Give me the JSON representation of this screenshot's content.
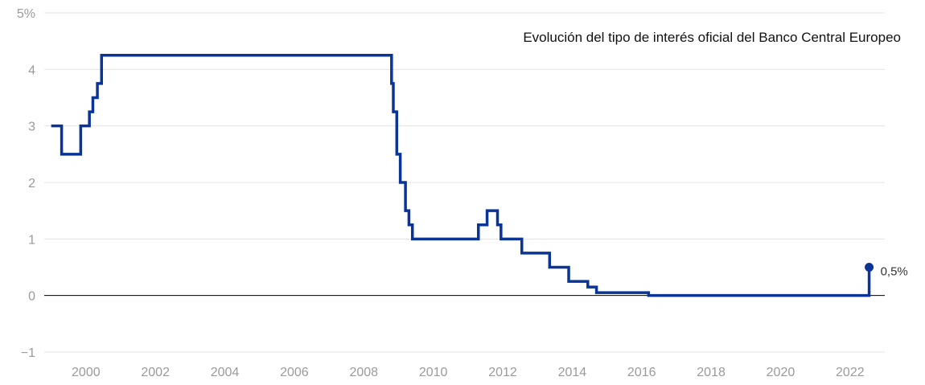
{
  "chart_data": {
    "type": "line",
    "title": "Evolución del tipo de interés oficial del Banco Central Europeo",
    "xlabel": "",
    "ylabel": "",
    "xlim": [
      1998.8,
      2023.0
    ],
    "ylim": [
      -1,
      5
    ],
    "x_ticks": [
      2000,
      2002,
      2004,
      2006,
      2008,
      2010,
      2012,
      2014,
      2016,
      2018,
      2020,
      2022
    ],
    "x_tick_labels": [
      "2000",
      "2002",
      "2004",
      "2006",
      "2008",
      "2010",
      "2012",
      "2014",
      "2016",
      "2018",
      "2020",
      "2022"
    ],
    "y_ticks": [
      -1,
      0,
      1,
      2,
      3,
      4,
      5
    ],
    "y_tick_labels": [
      "−1",
      "0",
      "1",
      "2",
      "3",
      "4",
      "5%"
    ],
    "grid": true,
    "series": [
      {
        "color": "#0a3596",
        "x": [
          1999.0,
          1999.3,
          1999.85,
          2000.1,
          2000.2,
          2000.33,
          2000.45,
          2008.8,
          2008.85,
          2008.95,
          2009.05,
          2009.2,
          2009.3,
          2009.4,
          2011.3,
          2011.55,
          2011.85,
          2011.95,
          2012.55,
          2013.35,
          2013.9,
          2014.45,
          2014.7,
          2016.2,
          2022.55
        ],
        "y": [
          3.0,
          2.5,
          3.0,
          3.25,
          3.5,
          3.75,
          4.25,
          3.75,
          3.25,
          2.5,
          2.0,
          1.5,
          1.25,
          1.0,
          1.25,
          1.5,
          1.25,
          1.0,
          0.75,
          0.5,
          0.25,
          0.15,
          0.05,
          0.0,
          0.5
        ],
        "end_x": 2022.9
      }
    ],
    "annotations": [
      {
        "text": "0,5%",
        "x": 2022.55,
        "y": 0.5
      }
    ]
  }
}
